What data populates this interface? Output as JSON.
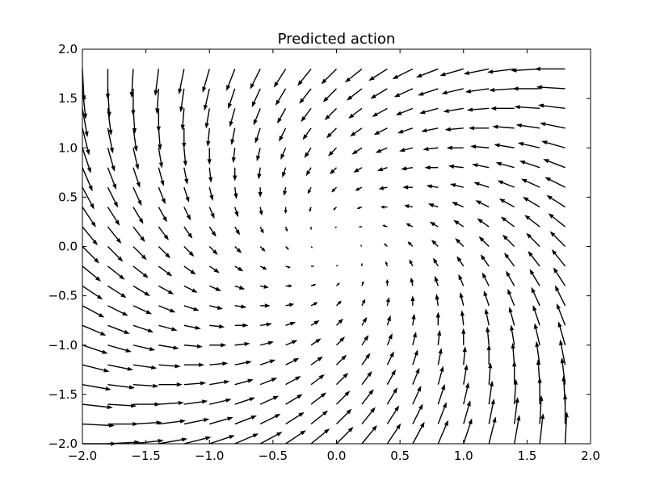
{
  "chart_data": {
    "type": "quiver",
    "title": "Predicted action",
    "xlabel": "",
    "ylabel": "",
    "xlim": [
      -2.0,
      2.0
    ],
    "ylim": [
      -2.0,
      2.0
    ],
    "xticks": [
      "−2.0",
      "−1.5",
      "−1.0",
      "−0.5",
      "0.0",
      "0.5",
      "1.0",
      "1.5",
      "2.0"
    ],
    "yticks": [
      "−2.0",
      "−1.5",
      "−1.0",
      "−0.5",
      "0.0",
      "0.5",
      "1.0",
      "1.5",
      "2.0"
    ],
    "grid": false,
    "legend": "none",
    "arrow_color": "#000000",
    "field": {
      "x_start": -2.0,
      "x_stop": 1.8,
      "x_step": 0.2,
      "y_start": -2.0,
      "y_stop": 1.8,
      "y_step": 0.2,
      "u_formula": "-x - y",
      "v_formula": "x - y",
      "center": [
        0.0,
        0.0
      ]
    }
  }
}
